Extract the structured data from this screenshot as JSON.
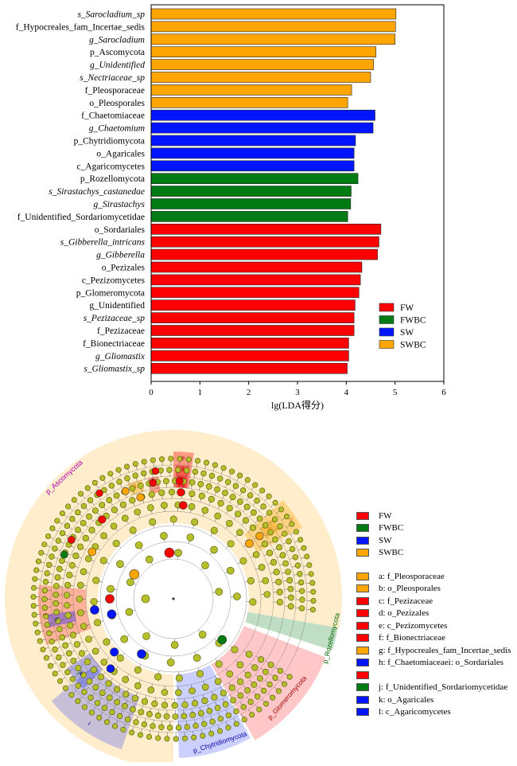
{
  "colors": {
    "FW": "#ff0000",
    "FWBC": "#007a12",
    "SW": "#0015ff",
    "SWBC": "#ffa500"
  },
  "chart_data": {
    "type": "bar",
    "orientation": "horizontal",
    "xlabel": "lg(LDA得分)",
    "ylabel": "",
    "xlim": [
      0,
      6
    ],
    "xticks": [
      0,
      1,
      2,
      3,
      4,
      5,
      6
    ],
    "legend_position": "bottom-right",
    "legend": [
      "FW",
      "FWBC",
      "SW",
      "SWBC"
    ],
    "bars": [
      {
        "label": "s_Sarocladium_sp",
        "value": 5.02,
        "group": "SWBC",
        "italic": true
      },
      {
        "label": "f_Hypocreales_fam_Incertae_sedis",
        "value": 5.01,
        "group": "SWBC",
        "italic": false
      },
      {
        "label": "g_Sarocladium",
        "value": 5.0,
        "group": "SWBC",
        "italic": true
      },
      {
        "label": "p_Ascomycota",
        "value": 4.61,
        "group": "SWBC",
        "italic": false
      },
      {
        "label": "g_Unidentified",
        "value": 4.56,
        "group": "SWBC",
        "italic": true
      },
      {
        "label": "s_Nectriaceae_sp",
        "value": 4.5,
        "group": "SWBC",
        "italic": true
      },
      {
        "label": "f_Pleosporaceae",
        "value": 4.11,
        "group": "SWBC",
        "italic": false
      },
      {
        "label": "o_Pleosporales",
        "value": 4.03,
        "group": "SWBC",
        "italic": false
      },
      {
        "label": "f_Chaetomiaceae",
        "value": 4.59,
        "group": "SW",
        "italic": false
      },
      {
        "label": "g_Chaetomium",
        "value": 4.55,
        "group": "SW",
        "italic": true
      },
      {
        "label": "p_Chytridiomycota",
        "value": 4.19,
        "group": "SW",
        "italic": false
      },
      {
        "label": "o_Agaricales",
        "value": 4.16,
        "group": "SW",
        "italic": false
      },
      {
        "label": "c_Agaricomycetes",
        "value": 4.16,
        "group": "SW",
        "italic": false
      },
      {
        "label": "p_Rozellomycota",
        "value": 4.24,
        "group": "FWBC",
        "italic": false
      },
      {
        "label": "s_Sirastachys_castanedae",
        "value": 4.1,
        "group": "FWBC",
        "italic": true
      },
      {
        "label": "g_Sirastachys",
        "value": 4.09,
        "group": "FWBC",
        "italic": true
      },
      {
        "label": "f_Unidentified_Sordariomycetidae",
        "value": 4.03,
        "group": "FWBC",
        "italic": false
      },
      {
        "label": "o_Sordariales",
        "value": 4.71,
        "group": "FW",
        "italic": false
      },
      {
        "label": "s_Gibberella_intricans",
        "value": 4.67,
        "group": "FW",
        "italic": true
      },
      {
        "label": "g_Gibberella",
        "value": 4.64,
        "group": "FW",
        "italic": true
      },
      {
        "label": "o_Pezizales",
        "value": 4.32,
        "group": "FW",
        "italic": false
      },
      {
        "label": "c_Pezizomycetes",
        "value": 4.29,
        "group": "FW",
        "italic": false
      },
      {
        "label": "p_Glomeromycota",
        "value": 4.26,
        "group": "FW",
        "italic": false
      },
      {
        "label": "g_Unidentified",
        "value": 4.18,
        "group": "FW",
        "italic": false
      },
      {
        "label": "s_Pezizaceae_sp",
        "value": 4.16,
        "group": "FW",
        "italic": true
      },
      {
        "label": "f_Pezizaceae",
        "value": 4.16,
        "group": "FW",
        "italic": false
      },
      {
        "label": "f_Bionectriaceae",
        "value": 4.05,
        "group": "FW",
        "italic": false
      },
      {
        "label": "g_Gliomastix",
        "value": 4.05,
        "group": "FW",
        "italic": true
      },
      {
        "label": "s_Gliomastix_sp",
        "value": 4.02,
        "group": "FW",
        "italic": true
      }
    ]
  },
  "cladogram": {
    "legend_groups": [
      {
        "name": "FW",
        "color": "#ff0000"
      },
      {
        "name": "FWBC",
        "color": "#007a12"
      },
      {
        "name": "SW",
        "color": "#0015ff"
      },
      {
        "name": "SWBC",
        "color": "#ffa500"
      }
    ],
    "legend_taxa": [
      {
        "key": "a",
        "text": "a: f_Pleosporaceae",
        "color": "#ffa500"
      },
      {
        "key": "b",
        "text": "b: o_Pleosporales",
        "color": "#ffa500"
      },
      {
        "key": "c",
        "text": "c: f_Pezizaceae",
        "color": "#ff0000"
      },
      {
        "key": "d",
        "text": "d: o_Pezizales",
        "color": "#ff0000"
      },
      {
        "key": "e",
        "text": "e: c_Pezizomycetes",
        "color": "#ff0000"
      },
      {
        "key": "f",
        "text": "f: f_Bionectriaceae",
        "color": "#ff0000"
      },
      {
        "key": "g",
        "text": "g: f_Hypocreales_fam_Incertae_sedis",
        "color": "#ffa500"
      },
      {
        "key": "h",
        "text": "h: f_Chaetomiaceaei: o_Sordariales",
        "color": "#0015ff"
      },
      {
        "key": "i",
        "text": "",
        "color": "#ff0000"
      },
      {
        "key": "j",
        "text": "j: f_Unidentified_Sordariomycetidae",
        "color": "#007a12"
      },
      {
        "key": "k",
        "text": "k: o_Agaricales",
        "color": "#0015ff"
      },
      {
        "key": "l",
        "text": "l: c_Agaricomycetes",
        "color": "#0015ff"
      }
    ],
    "sector_labels": {
      "ascomycota": "p_Ascomycota",
      "rozellomycota": "p_Rozellomycota",
      "glomeromycota": "p_Glomeromycota",
      "chytridiomycota": "p_Chytridiomycota",
      "a": "a",
      "b": "b",
      "c": "c",
      "d": "d",
      "e": "e",
      "f": "f",
      "g": "g",
      "h": "h",
      "i": "i",
      "j": "j",
      "k": "k",
      "l": "l"
    }
  }
}
